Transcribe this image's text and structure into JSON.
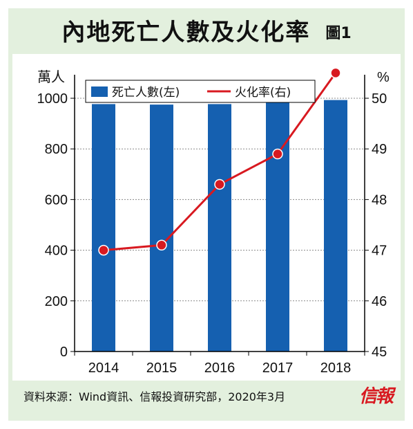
{
  "header": {
    "title": "內地死亡人數及火化率",
    "figure_label": "圖1"
  },
  "source": "資料來源：Wind資訊、信報投資研究部，2020年3月",
  "stamp": "信報",
  "colors": {
    "background": "#e3f0de",
    "bar": "#1560b0",
    "line": "#d81920"
  },
  "chart_data": {
    "type": "bar+line",
    "categories": [
      "2014",
      "2015",
      "2016",
      "2017",
      "2018"
    ],
    "series": [
      {
        "name": "死亡人數(左)",
        "type": "bar",
        "axis": "left",
        "values": [
          977,
          975,
          977,
          986,
          993
        ]
      },
      {
        "name": "火化率(右)",
        "type": "line",
        "axis": "right",
        "values": [
          47.0,
          47.1,
          48.3,
          48.9,
          50.5
        ]
      }
    ],
    "left_axis": {
      "label": "萬人",
      "ylim": [
        0,
        1000
      ],
      "ticks": [
        0,
        200,
        400,
        600,
        800,
        1000
      ]
    },
    "right_axis": {
      "label": "%",
      "ylim": [
        45,
        50
      ],
      "ticks": [
        45,
        46,
        47,
        48,
        49,
        50
      ]
    },
    "grid": "dashed horizontal",
    "legend_position": "top-left"
  }
}
